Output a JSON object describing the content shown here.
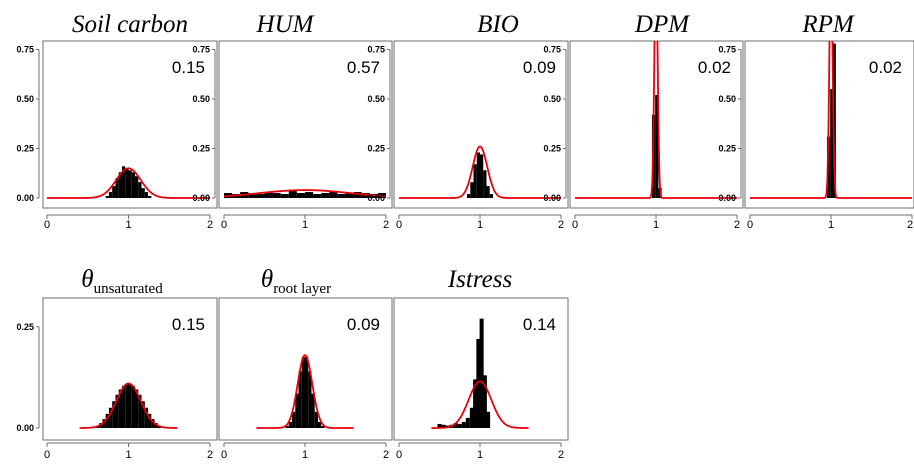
{
  "chart_data": [
    {
      "type": "histogram",
      "title": "Soil carbon",
      "annotation": "0.15",
      "xlim": [
        0,
        2
      ],
      "ylim": [
        0,
        0.8
      ],
      "xticks": [
        "0",
        "1",
        "2"
      ],
      "yticks": [
        "0.00",
        "0.25",
        "0.50",
        "0.75"
      ],
      "hist": {
        "x": [
          0.74,
          0.78,
          0.82,
          0.86,
          0.9,
          0.94,
          0.98,
          1.02,
          1.06,
          1.1,
          1.14,
          1.18,
          1.22,
          1.26
        ],
        "y": [
          0.01,
          0.03,
          0.06,
          0.1,
          0.13,
          0.16,
          0.15,
          0.14,
          0.13,
          0.11,
          0.08,
          0.05,
          0.03,
          0.01
        ]
      },
      "curve": {
        "type": "normal",
        "mean": 1.0,
        "peak": 0.15,
        "sd": 0.15
      },
      "colors": {
        "bars": "#000000",
        "curve": "#e8000b"
      }
    },
    {
      "type": "histogram",
      "title": "HUM",
      "annotation": "0.57",
      "xlim": [
        0,
        2
      ],
      "ylim": [
        0,
        0.8
      ],
      "xticks": [
        "0",
        "1",
        "2"
      ],
      "yticks": [
        "0.00",
        "0.25",
        "0.50",
        "0.75"
      ],
      "hist": {
        "x": [
          0.05,
          0.15,
          0.25,
          0.35,
          0.45,
          0.55,
          0.65,
          0.75,
          0.85,
          0.95,
          1.05,
          1.15,
          1.25,
          1.35,
          1.45,
          1.55,
          1.65,
          1.75,
          1.85,
          1.95
        ],
        "y": [
          0.025,
          0.02,
          0.03,
          0.025,
          0.02,
          0.03,
          0.025,
          0.02,
          0.035,
          0.025,
          0.03,
          0.02,
          0.025,
          0.03,
          0.02,
          0.025,
          0.03,
          0.025,
          0.02,
          0.025
        ]
      },
      "curve": {
        "type": "normal",
        "mean": 1.0,
        "peak": 0.04,
        "sd": 0.57
      },
      "colors": {
        "bars": "#000000",
        "curve": "#e8000b"
      }
    },
    {
      "type": "histogram",
      "title": "BIO",
      "annotation": "0.09",
      "xlim": [
        0,
        2
      ],
      "ylim": [
        0,
        0.8
      ],
      "xticks": [
        "0",
        "1",
        "2"
      ],
      "yticks": [
        "0.00",
        "0.25",
        "0.50",
        "0.75"
      ],
      "hist": {
        "x": [
          0.86,
          0.9,
          0.94,
          0.98,
          1.02,
          1.06,
          1.1,
          1.14
        ],
        "y": [
          0.02,
          0.08,
          0.17,
          0.23,
          0.22,
          0.14,
          0.06,
          0.02
        ]
      },
      "curve": {
        "type": "normal",
        "mean": 1.0,
        "peak": 0.26,
        "sd": 0.09
      },
      "colors": {
        "bars": "#000000",
        "curve": "#e8000b"
      }
    },
    {
      "type": "histogram",
      "title": "DPM",
      "annotation": "0.02",
      "xlim": [
        0,
        2
      ],
      "ylim": [
        0,
        0.8
      ],
      "xticks": [
        "0",
        "1",
        "2"
      ],
      "yticks": [
        "0.00",
        "0.25",
        "0.50",
        "0.75"
      ],
      "hist": {
        "x": [
          0.97,
          1.01,
          1.05
        ],
        "y": [
          0.42,
          0.52,
          0.05
        ]
      },
      "curve": {
        "type": "normal",
        "mean": 1.0,
        "peak": 1.2,
        "sd": 0.02
      },
      "colors": {
        "bars": "#000000",
        "curve": "#e8000b"
      }
    },
    {
      "type": "histogram",
      "title": "RPM",
      "annotation": "0.02",
      "xlim": [
        0,
        2
      ],
      "ylim": [
        0,
        0.8
      ],
      "xticks": [
        "0",
        "1",
        "2"
      ],
      "yticks": [
        "0.00",
        "0.25",
        "0.50",
        "0.75"
      ],
      "hist": {
        "x": [
          0.97,
          1.01,
          1.04
        ],
        "y": [
          0.31,
          0.55,
          0.78
        ]
      },
      "curve": {
        "type": "normal",
        "mean": 1.0,
        "peak": 1.2,
        "sd": 0.02
      },
      "colors": {
        "bars": "#000000",
        "curve": "#e8000b"
      }
    },
    {
      "type": "histogram",
      "title": "θ",
      "title_subscript": "unsaturated",
      "annotation": "0.15",
      "xlim": [
        0,
        2
      ],
      "ylim": [
        0,
        0.32
      ],
      "xticks": [
        "0",
        "1",
        "2"
      ],
      "yticks": [
        "0.00",
        "0.25"
      ],
      "hist": {
        "x": [
          0.62,
          0.66,
          0.7,
          0.74,
          0.78,
          0.82,
          0.86,
          0.9,
          0.94,
          0.98,
          1.02,
          1.06,
          1.1,
          1.14,
          1.18,
          1.22,
          1.26,
          1.3,
          1.34,
          1.38
        ],
        "y": [
          0.005,
          0.012,
          0.022,
          0.035,
          0.05,
          0.066,
          0.082,
          0.095,
          0.104,
          0.108,
          0.108,
          0.104,
          0.095,
          0.082,
          0.066,
          0.05,
          0.035,
          0.022,
          0.012,
          0.005
        ]
      },
      "curve": {
        "type": "normal",
        "mean": 1.0,
        "peak": 0.11,
        "sd": 0.15,
        "range": [
          0.4,
          1.6
        ]
      },
      "colors": {
        "bars": "#000000",
        "curve": "#e8000b"
      }
    },
    {
      "type": "histogram",
      "title": "θ",
      "title_subscript": "root layer",
      "annotation": "0.09",
      "xlim": [
        0,
        2
      ],
      "ylim": [
        0,
        0.32
      ],
      "xticks": [
        "0",
        "1",
        "2"
      ],
      "yticks": [],
      "hist": {
        "x": [
          0.78,
          0.82,
          0.86,
          0.9,
          0.94,
          0.98,
          1.02,
          1.06,
          1.1,
          1.14,
          1.18,
          1.22
        ],
        "y": [
          0.005,
          0.015,
          0.04,
          0.085,
          0.14,
          0.175,
          0.175,
          0.14,
          0.085,
          0.04,
          0.015,
          0.005
        ]
      },
      "curve": {
        "type": "normal",
        "mean": 1.0,
        "peak": 0.18,
        "sd": 0.09,
        "range": [
          0.4,
          1.6
        ]
      },
      "colors": {
        "bars": "#000000",
        "curve": "#e8000b"
      }
    },
    {
      "type": "histogram",
      "title": "Istress",
      "annotation": "0.14",
      "xlim": [
        0,
        2
      ],
      "ylim": [
        0,
        0.32
      ],
      "xticks": [
        "0",
        "1",
        "2"
      ],
      "yticks": [],
      "hist": {
        "x": [
          0.5,
          0.55,
          0.6,
          0.65,
          0.7,
          0.75,
          0.8,
          0.85,
          0.9,
          0.94,
          0.98,
          1.02,
          1.06,
          1.1
        ],
        "y": [
          0.01,
          0.008,
          0.006,
          0.008,
          0.012,
          0.01,
          0.015,
          0.025,
          0.05,
          0.12,
          0.22,
          0.27,
          0.13,
          0.04
        ]
      },
      "curve": {
        "type": "normal",
        "mean": 1.0,
        "peak": 0.115,
        "sd": 0.14,
        "range": [
          0.4,
          1.6
        ]
      },
      "colors": {
        "bars": "#000000",
        "curve": "#e8000b"
      }
    }
  ]
}
